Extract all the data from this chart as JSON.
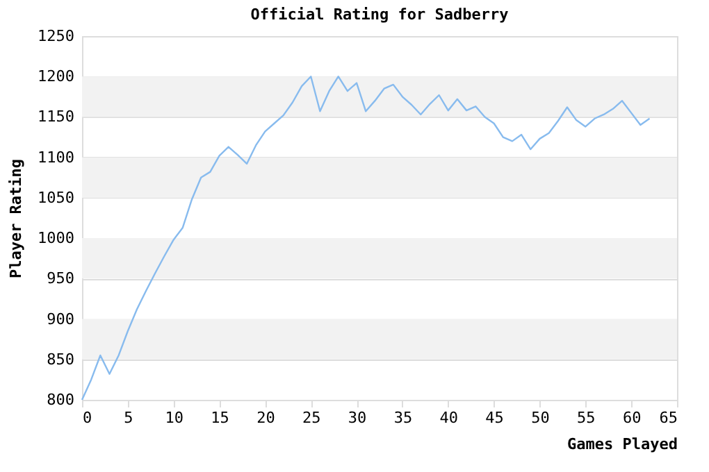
{
  "chart_data": {
    "type": "line",
    "title": "Official Rating for Sadberry",
    "xlabel": "Games Played",
    "ylabel": "Player Rating",
    "x": [
      0,
      1,
      2,
      3,
      4,
      5,
      6,
      7,
      8,
      9,
      10,
      11,
      12,
      13,
      14,
      15,
      16,
      17,
      18,
      19,
      20,
      21,
      22,
      23,
      24,
      25,
      26,
      27,
      28,
      29,
      30,
      31,
      32,
      33,
      34,
      35,
      36,
      37,
      38,
      39,
      40,
      41,
      42,
      43,
      44,
      45,
      46,
      47,
      48,
      49,
      50,
      51,
      52,
      53,
      54,
      55,
      56,
      57,
      58,
      59,
      60,
      61,
      62
    ],
    "series": [
      {
        "color": "#88bbee",
        "values": [
          800,
          825,
          855,
          832,
          855,
          885,
          912,
          935,
          957,
          978,
          998,
          1013,
          1048,
          1075,
          1082,
          1102,
          1113,
          1103,
          1092,
          1115,
          1132,
          1142,
          1152,
          1168,
          1188,
          1200,
          1157,
          1182,
          1200,
          1182,
          1192,
          1157,
          1170,
          1185,
          1190,
          1175,
          1165,
          1153,
          1166,
          1177,
          1158,
          1172,
          1158,
          1163,
          1150,
          1142,
          1125,
          1120,
          1128,
          1110,
          1123,
          1130,
          1145,
          1162,
          1146,
          1138,
          1148,
          1153,
          1160,
          1170,
          1155,
          1140,
          1148
        ]
      }
    ],
    "xlim": [
      0,
      65
    ],
    "xticks": [
      0,
      5,
      10,
      15,
      20,
      25,
      30,
      35,
      40,
      45,
      50,
      55,
      60,
      65
    ],
    "ylim": [
      800,
      1250
    ],
    "yticks": [
      800,
      850,
      900,
      950,
      1000,
      1050,
      1100,
      1150,
      1200,
      1250
    ],
    "grid": "y",
    "marker": "none",
    "line_style": "solid"
  }
}
